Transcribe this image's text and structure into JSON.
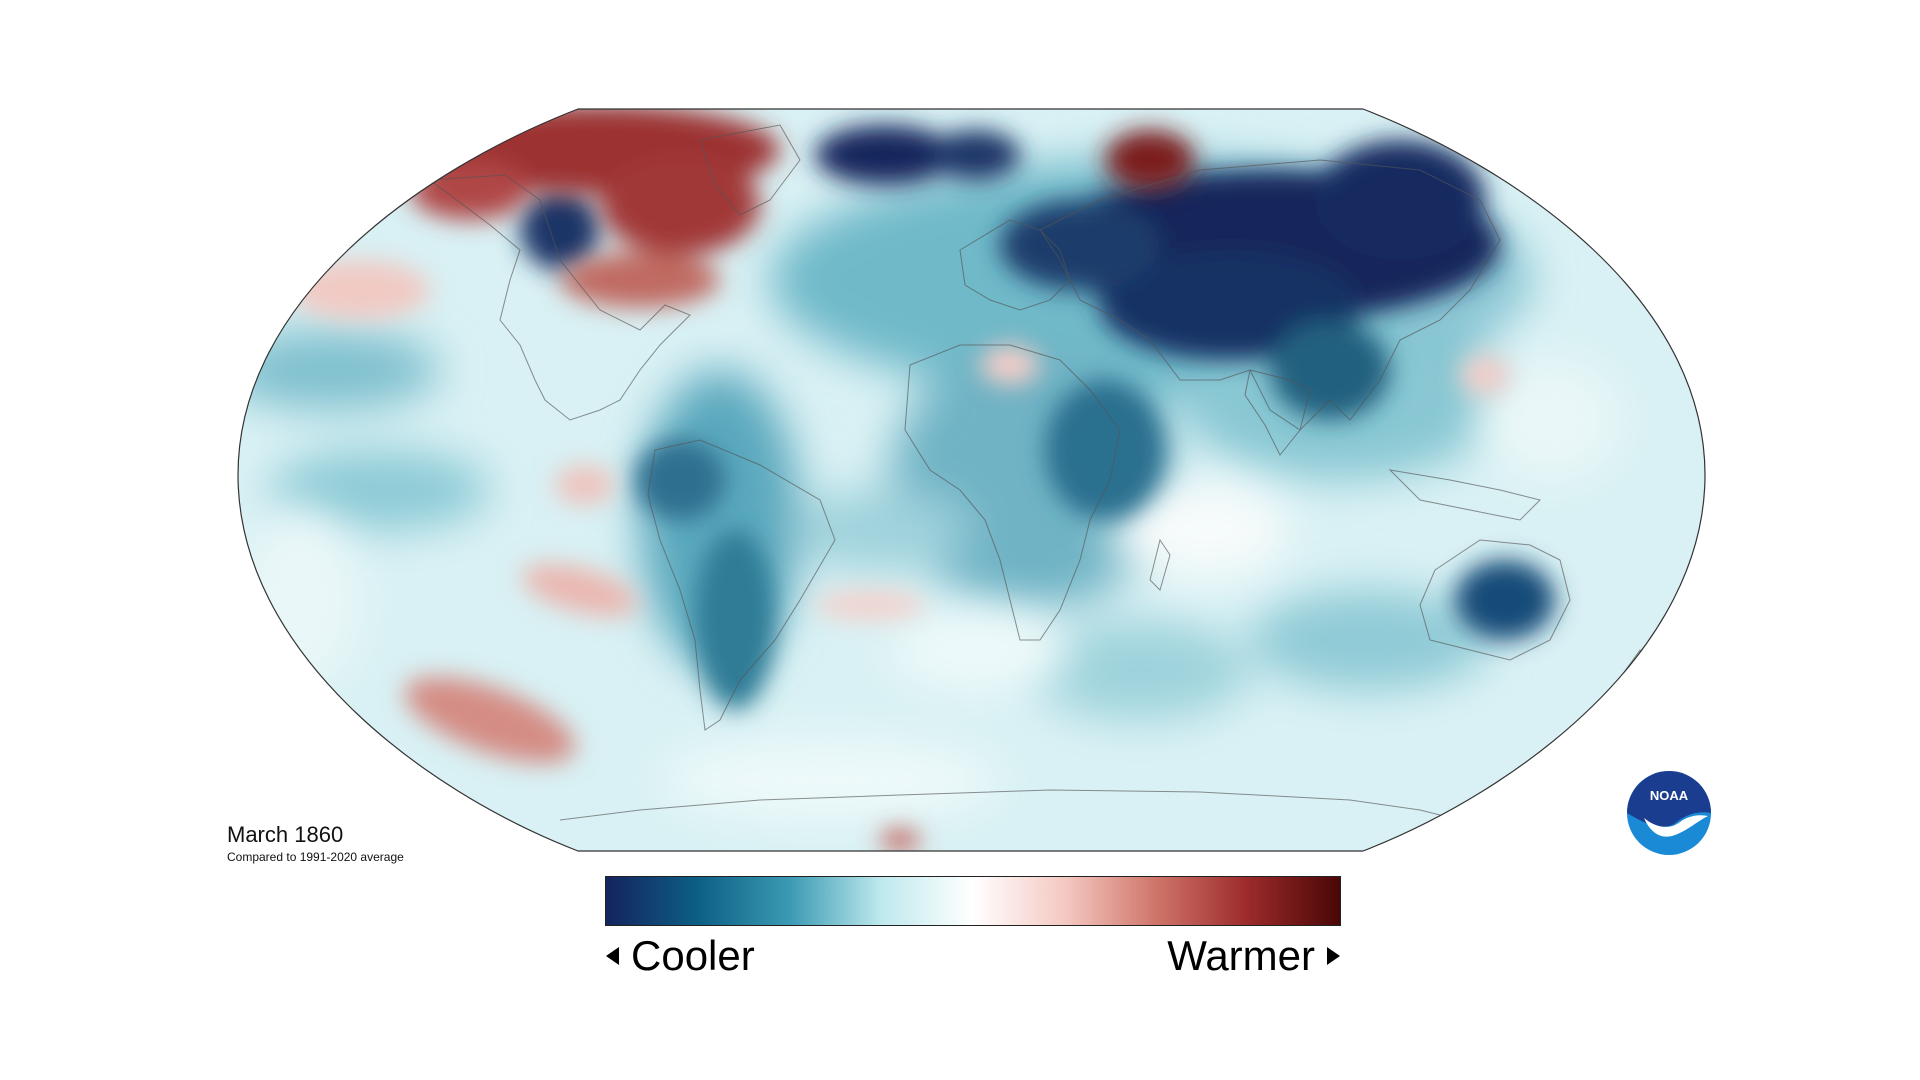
{
  "caption": {
    "title": "March 1860",
    "subtitle": "Compared to 1991-2020 average"
  },
  "legend": {
    "cooler_label": "Cooler",
    "warmer_label": "Warmer",
    "gradient_colors": [
      "#14245e",
      "#0c5f85",
      "#3a9ab3",
      "#bfe9ee",
      "#ffffff",
      "#f4c9c2",
      "#cf7469",
      "#9b2a2a",
      "#4a0606"
    ]
  },
  "logo": {
    "text": "NOAA",
    "colors": {
      "top": "#1a3d8f",
      "bottom": "#1b8ad6",
      "bird": "#ffffff"
    }
  },
  "map": {
    "projection": "Robinson",
    "variable": "temperature anomaly",
    "cold_color": "#17295e",
    "warm_color": "#8e1e1e",
    "neutral_color": "#d9f1f4"
  }
}
